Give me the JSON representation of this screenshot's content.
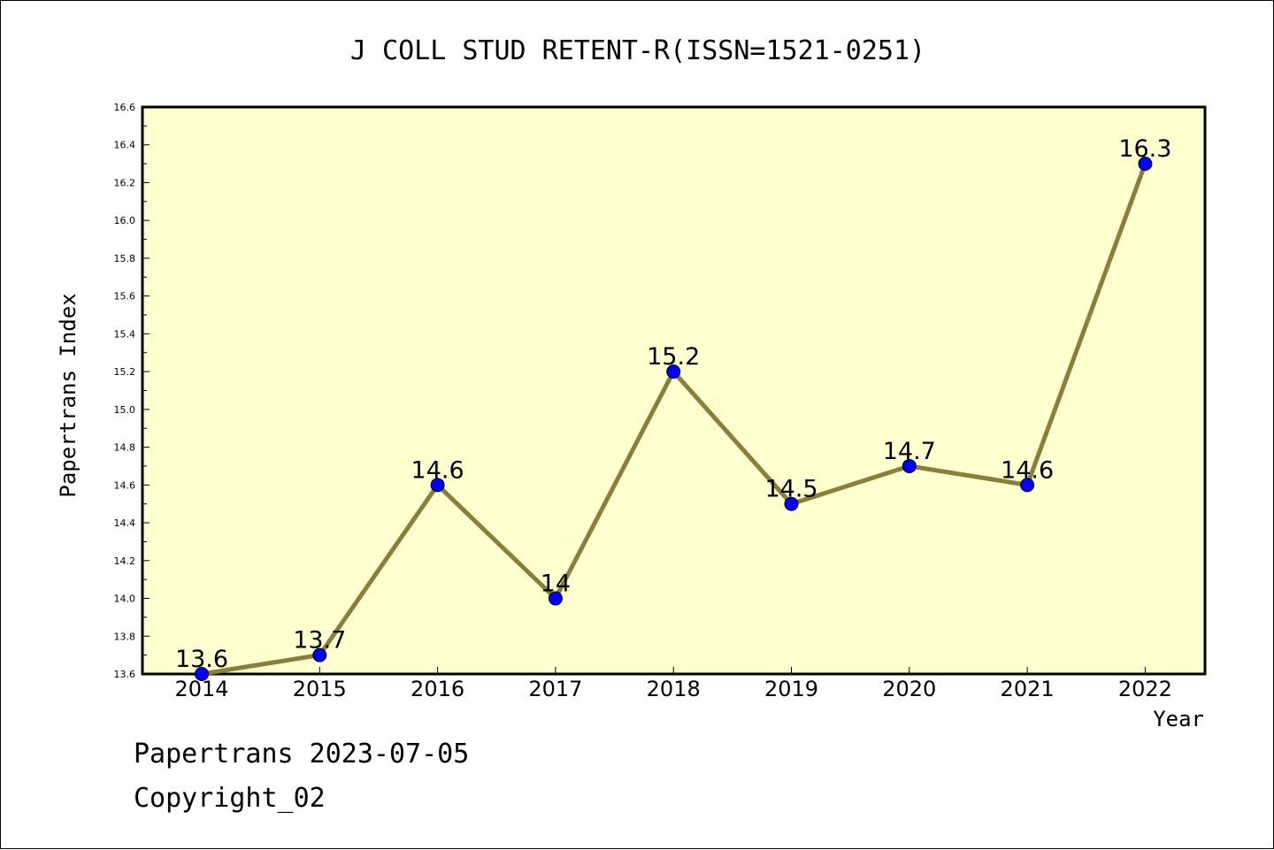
{
  "footer": {
    "credit": "Papertrans 2023-07-05",
    "copyright": "Copyright_02"
  },
  "colors": {
    "plot_background": "#ffffd0",
    "line": "#8b7d3a",
    "marker": "#0000ff"
  },
  "chart_data": {
    "type": "line",
    "title": "J COLL STUD RETENT-R(ISSN=1521-0251)",
    "xlabel": "Year",
    "ylabel": "Papertrans Index",
    "x": [
      2014,
      2015,
      2016,
      2017,
      2018,
      2019,
      2020,
      2021,
      2022
    ],
    "series": [
      {
        "values": [
          13.6,
          13.7,
          14.6,
          14.0,
          15.2,
          14.5,
          14.7,
          14.6,
          16.3
        ],
        "labels": [
          "13.6",
          "13.7",
          "14.6",
          "14",
          "15.2",
          "14.5",
          "14.7",
          "14.6",
          "16.3"
        ]
      }
    ],
    "ylim": [
      13.6,
      16.6
    ],
    "yticks": [
      "13.6",
      "13.8",
      "14.0",
      "14.2",
      "14.4",
      "14.6",
      "14.8",
      "15.0",
      "15.2",
      "15.4",
      "15.6",
      "15.8",
      "16.0",
      "16.2",
      "16.4",
      "16.6"
    ],
    "grid": false,
    "legend": "none"
  }
}
